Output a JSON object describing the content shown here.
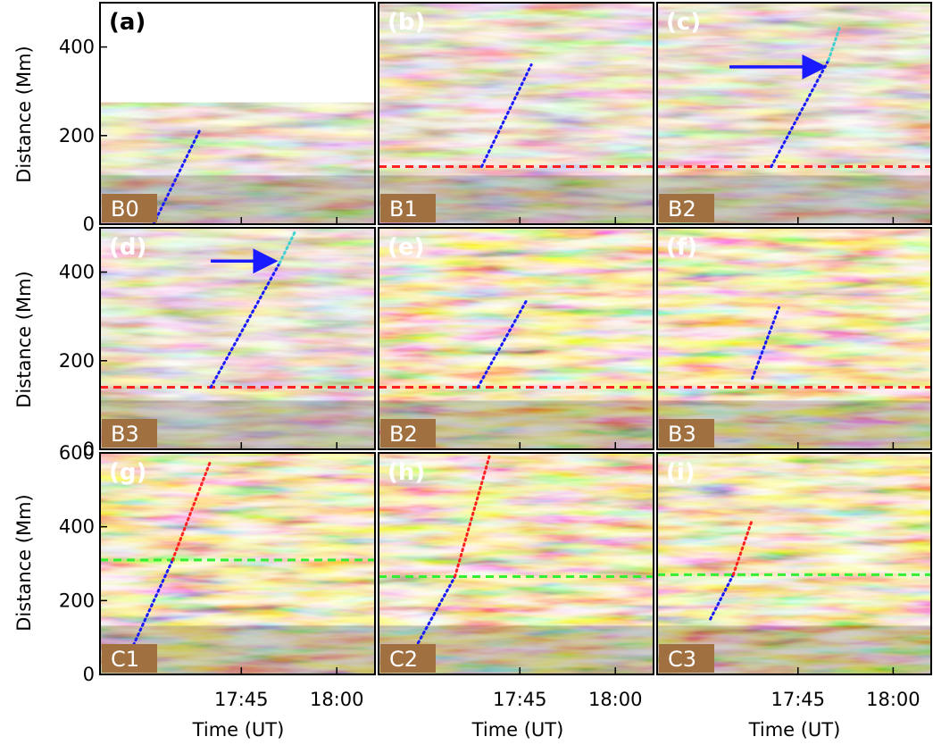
{
  "figure": {
    "y_axis_title": "Distance (Mm)",
    "x_axis_title": "Time (UT)"
  },
  "colors": {
    "brown_low": "#4a2e12",
    "brown_mid": "#a87e4e",
    "brown_high": "#f5e6c8",
    "gold_low": "#2a1a00",
    "gold_mid": "#d99e1e",
    "gold_high": "#fff3c0",
    "blue": "#1a1aff",
    "red": "#ff2020",
    "cyan": "#40d0d0",
    "green": "#33ee33",
    "tag_bg": "#a07040"
  },
  "chart_data": [
    {
      "type": "heatmap",
      "panel": "(a)",
      "tag": "B0",
      "colormap": "brown",
      "xtick_labels": [],
      "ylim": [
        0,
        500
      ],
      "yticks": [
        0,
        200,
        400
      ],
      "white_above": 275,
      "fit_lines": [
        {
          "color": "blue",
          "points": [
            [
              17.52,
              0
            ],
            [
              17.64,
              210
            ]
          ]
        }
      ],
      "ref_lines": [],
      "arrow": null
    },
    {
      "type": "heatmap",
      "panel": "(b)",
      "tag": "B1",
      "colormap": "brown",
      "xtick_labels": [],
      "ylim": [
        0,
        500
      ],
      "yticks": [],
      "white_above": null,
      "fit_lines": [
        {
          "color": "blue",
          "points": [
            [
              17.65,
              130
            ],
            [
              17.78,
              360
            ]
          ]
        }
      ],
      "ref_lines": [
        {
          "color": "red",
          "y": 130
        }
      ],
      "arrow": null
    },
    {
      "type": "heatmap",
      "panel": "(c)",
      "tag": "B2",
      "colormap": "brown",
      "xtick_labels": [],
      "ylim": [
        0,
        500
      ],
      "yticks": [],
      "white_above": null,
      "fit_lines": [
        {
          "color": "blue",
          "points": [
            [
              17.68,
              130
            ],
            [
              17.83,
              370
            ]
          ]
        },
        {
          "color": "cyan",
          "points": [
            [
              17.83,
              370
            ],
            [
              17.86,
              445
            ]
          ]
        }
      ],
      "ref_lines": [
        {
          "color": "red",
          "y": 130
        }
      ],
      "arrow": {
        "from": [
          17.57,
          355
        ],
        "to": [
          17.81,
          355
        ]
      }
    },
    {
      "type": "heatmap",
      "panel": "(d)",
      "tag": "B3",
      "colormap": "brown",
      "xtick_labels": [],
      "ylim": [
        0,
        500
      ],
      "yticks": [
        0,
        200,
        400
      ],
      "white_above": null,
      "fit_lines": [
        {
          "color": "blue",
          "points": [
            [
              17.67,
              140
            ],
            [
              17.85,
              420
            ]
          ]
        },
        {
          "color": "cyan",
          "points": [
            [
              17.85,
              420
            ],
            [
              17.89,
              490
            ]
          ]
        }
      ],
      "ref_lines": [
        {
          "color": "red",
          "y": 140
        }
      ],
      "arrow": {
        "from": [
          17.67,
          425
        ],
        "to": [
          17.83,
          425
        ]
      }
    },
    {
      "type": "heatmap",
      "panel": "(e)",
      "tag": "B2",
      "colormap": "gold",
      "xtick_labels": [],
      "ylim": [
        0,
        500
      ],
      "yticks": [],
      "white_above": null,
      "fit_lines": [
        {
          "color": "blue",
          "points": [
            [
              17.64,
              140
            ],
            [
              17.77,
              340
            ]
          ]
        }
      ],
      "ref_lines": [
        {
          "color": "red",
          "y": 140
        }
      ],
      "arrow": null
    },
    {
      "type": "heatmap",
      "panel": "(f)",
      "tag": "B3",
      "colormap": "gold",
      "xtick_labels": [],
      "ylim": [
        0,
        500
      ],
      "yticks": [],
      "white_above": null,
      "fit_lines": [
        {
          "color": "blue",
          "points": [
            [
              17.63,
              160
            ],
            [
              17.7,
              320
            ]
          ]
        }
      ],
      "ref_lines": [
        {
          "color": "red",
          "y": 140
        }
      ],
      "arrow": null
    },
    {
      "type": "heatmap",
      "panel": "(g)",
      "tag": "C1",
      "colormap": "gold",
      "xtick_labels": [
        "17:45",
        "18:00"
      ],
      "ylim": [
        0,
        600
      ],
      "yticks": [
        0,
        200,
        400,
        600
      ],
      "white_above": null,
      "fit_lines": [
        {
          "color": "blue",
          "points": [
            [
              17.45,
              40
            ],
            [
              17.57,
              310
            ]
          ]
        },
        {
          "color": "red",
          "points": [
            [
              17.57,
              310
            ],
            [
              17.67,
              580
            ]
          ]
        }
      ],
      "ref_lines": [
        {
          "color": "green",
          "y": 310
        }
      ],
      "arrow": null
    },
    {
      "type": "heatmap",
      "panel": "(h)",
      "tag": "C2",
      "colormap": "gold",
      "xtick_labels": [
        "17:45",
        "18:00"
      ],
      "ylim": [
        0,
        600
      ],
      "yticks": [],
      "white_above": null,
      "fit_lines": [
        {
          "color": "blue",
          "points": [
            [
              17.47,
              60
            ],
            [
              17.58,
              265
            ]
          ]
        },
        {
          "color": "red",
          "points": [
            [
              17.58,
              265
            ],
            [
              17.67,
              590
            ]
          ]
        }
      ],
      "ref_lines": [
        {
          "color": "green",
          "y": 265
        }
      ],
      "arrow": null
    },
    {
      "type": "heatmap",
      "panel": "(i)",
      "tag": "C3",
      "colormap": "gold",
      "xtick_labels": [
        "17:45",
        "18:00"
      ],
      "ylim": [
        0,
        600
      ],
      "yticks": [],
      "white_above": null,
      "fit_lines": [
        {
          "color": "blue",
          "points": [
            [
              17.52,
              150
            ],
            [
              17.58,
              270
            ]
          ]
        },
        {
          "color": "red",
          "points": [
            [
              17.58,
              270
            ],
            [
              17.63,
              420
            ]
          ]
        }
      ],
      "ref_lines": [
        {
          "color": "green",
          "y": 270
        }
      ],
      "arrow": null
    }
  ]
}
